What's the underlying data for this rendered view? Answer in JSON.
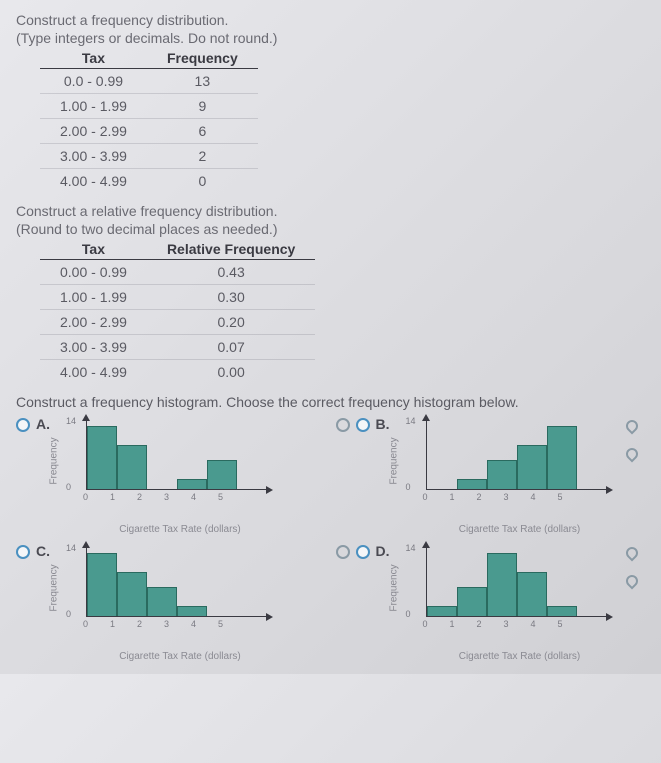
{
  "q1": {
    "title": "Construct a frequency distribution.",
    "note": "(Type integers or decimals. Do not round.)",
    "headers": [
      "Tax",
      "Frequency"
    ],
    "rows": [
      {
        "tax": "0.0 - 0.99",
        "val": "13"
      },
      {
        "tax": "1.00 - 1.99",
        "val": "9"
      },
      {
        "tax": "2.00 - 2.99",
        "val": "6"
      },
      {
        "tax": "3.00 - 3.99",
        "val": "2"
      },
      {
        "tax": "4.00 - 4.99",
        "val": "0"
      }
    ]
  },
  "q2": {
    "title": "Construct a relative frequency distribution.",
    "note": "(Round to two decimal places as needed.)",
    "headers": [
      "Tax",
      "Relative Frequency"
    ],
    "rows": [
      {
        "tax": "0.00 - 0.99",
        "val": "0.43"
      },
      {
        "tax": "1.00 - 1.99",
        "val": "0.30"
      },
      {
        "tax": "2.00 - 2.99",
        "val": "0.20"
      },
      {
        "tax": "3.00 - 3.99",
        "val": "0.07"
      },
      {
        "tax": "4.00 - 4.99",
        "val": "0.00"
      }
    ]
  },
  "q3": {
    "title": "Construct a frequency histogram. Choose the correct frequency histogram below.",
    "ylabel": "Frequency",
    "xlabel": "Cigarette Tax Rate (dollars)",
    "ymax": 14,
    "ytick_top": "14",
    "ytick_bot": "0",
    "xticks": [
      "0",
      "1",
      "2",
      "3",
      "4",
      "5"
    ],
    "bar_color": "#4a9a8f",
    "bar_border": "#2a6a5f",
    "options": {
      "A": {
        "label": "A.",
        "values": [
          13,
          9,
          0,
          2,
          6
        ]
      },
      "B": {
        "label": "B.",
        "values": [
          0,
          2,
          6,
          9,
          13
        ]
      },
      "C": {
        "label": "C.",
        "values": [
          13,
          9,
          6,
          2,
          0
        ]
      },
      "D": {
        "label": "D.",
        "values": [
          2,
          6,
          13,
          9,
          2
        ]
      }
    }
  }
}
